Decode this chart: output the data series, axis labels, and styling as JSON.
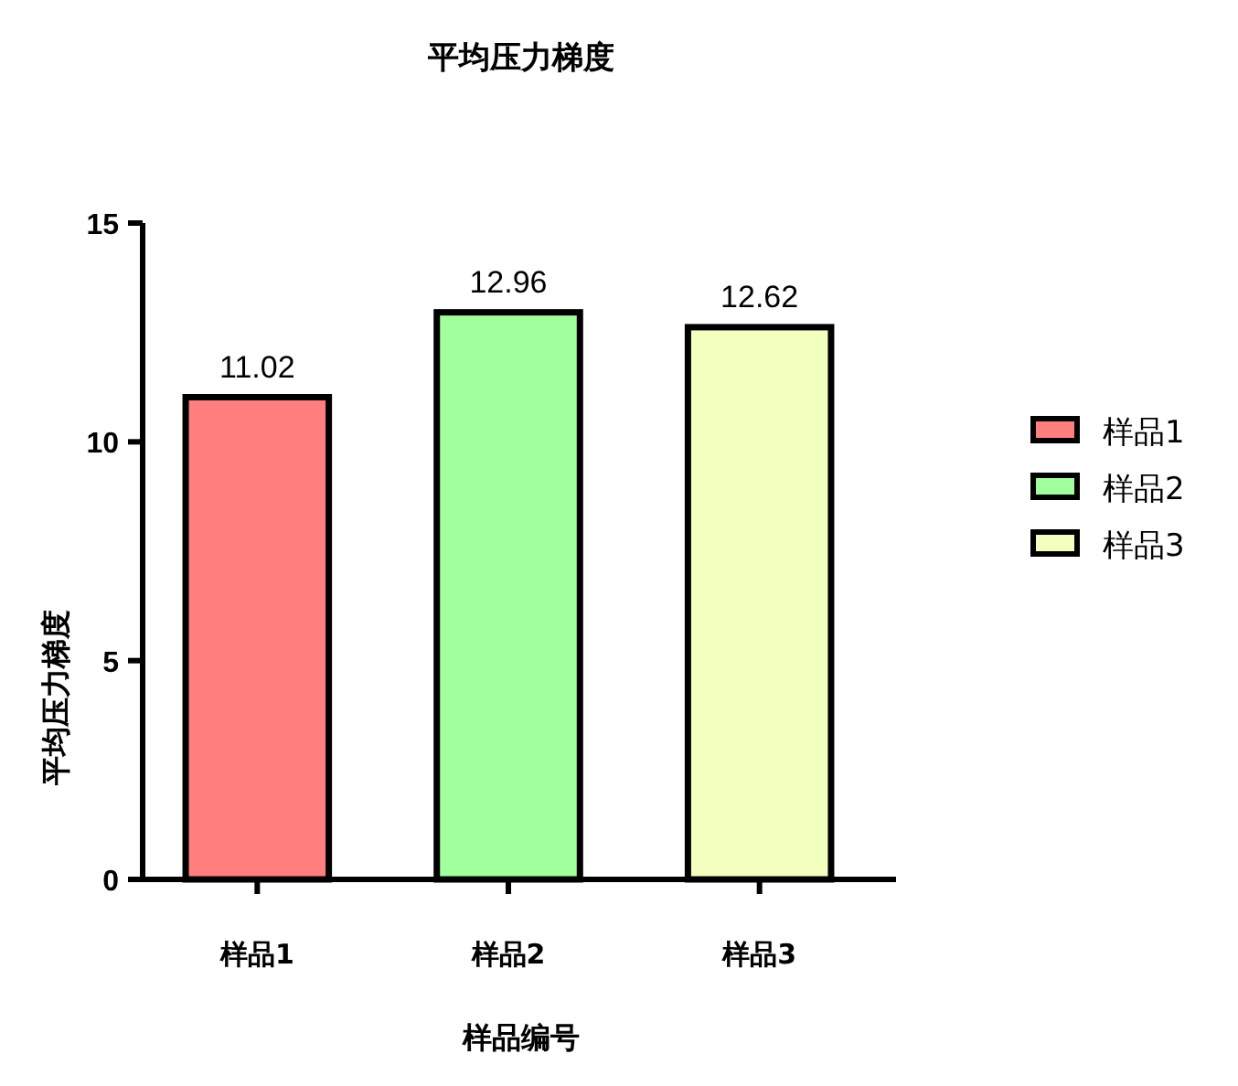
{
  "chart_data": {
    "type": "bar",
    "title": "平均压力梯度",
    "xlabel": "样品编号",
    "ylabel": "平均压力梯度",
    "categories": [
      "样品1",
      "样品2",
      "样品3"
    ],
    "series": [
      {
        "name": "样品1",
        "color": "#ff7f7f",
        "values": [
          11.02,
          null,
          null
        ]
      },
      {
        "name": "样品2",
        "color": "#a2ff9e",
        "values": [
          null,
          12.96,
          null
        ]
      },
      {
        "name": "样品3",
        "color": "#f2ffbe",
        "values": [
          null,
          null,
          12.62
        ]
      }
    ],
    "stacked": true,
    "ylim": [
      0,
      15
    ],
    "yticks": [
      0,
      5,
      10,
      15
    ],
    "data_labels": true,
    "legend": "right"
  }
}
